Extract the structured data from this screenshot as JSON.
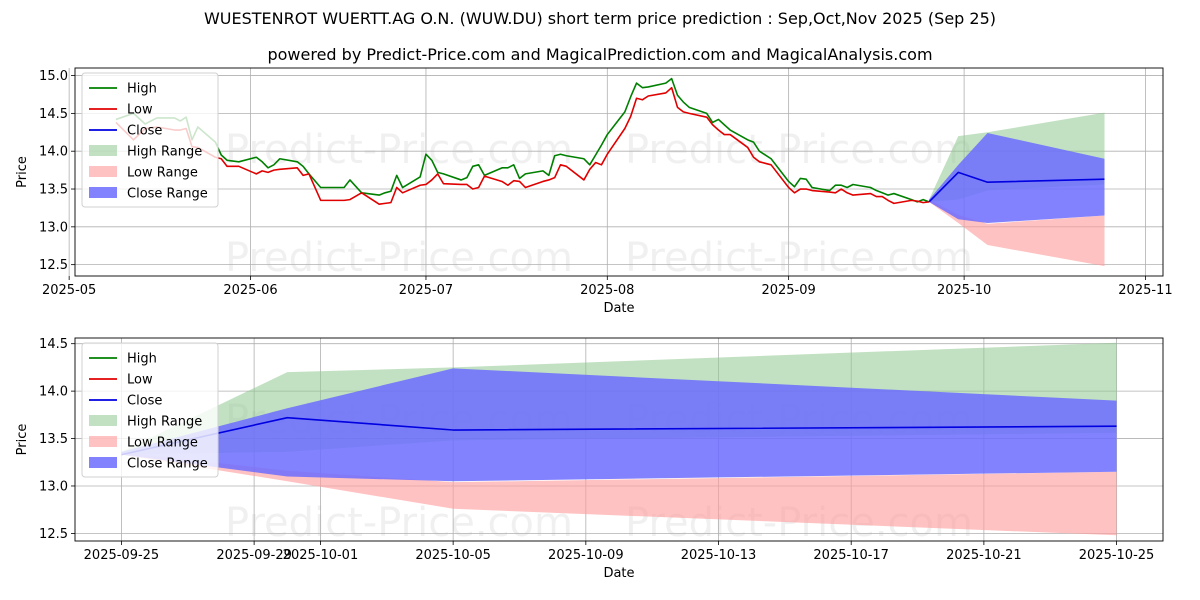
{
  "title": "WUESTENROT WUERTT.AG O.N. (WUW.DU) short term price prediction : Sep,Oct,Nov 2025 (Sep 25)",
  "subtitle": "powered by Predict-Price.com and MagicalPrediction.com and MagicalAnalysis.com",
  "watermark": "Predict-Price.com",
  "colors": {
    "high": "#008000",
    "low": "#e00000",
    "close": "#0000e0",
    "high_range": "#8fc98f",
    "low_range": "#ff9c9c",
    "close_range": "#6c6cff"
  },
  "chart_data": [
    {
      "type": "line",
      "xlabel": "Date",
      "ylabel": "Price",
      "xlim": [
        "2025-05-02",
        "2025-11-04"
      ],
      "ylim": [
        12.35,
        15.1
      ],
      "xticks": [
        "2025-05",
        "2025-06",
        "2025-07",
        "2025-08",
        "2025-09",
        "2025-10",
        "2025-11"
      ],
      "yticks": [
        12.5,
        13.0,
        13.5,
        14.0,
        14.5,
        15.0
      ],
      "legend": [
        "High",
        "Low",
        "Close",
        "High Range",
        "Low Range",
        "Close Range"
      ],
      "legend_position": "top-left",
      "grid": true,
      "series": [
        {
          "name": "High",
          "x": [
            "2025-05-09",
            "2025-05-12",
            "2025-05-14",
            "2025-05-16",
            "2025-05-19",
            "2025-05-20",
            "2025-05-21",
            "2025-05-22",
            "2025-05-23",
            "2025-05-26",
            "2025-05-27",
            "2025-05-28",
            "2025-05-30",
            "2025-06-02",
            "2025-06-03",
            "2025-06-04",
            "2025-06-05",
            "2025-06-06",
            "2025-06-09",
            "2025-06-10",
            "2025-06-11",
            "2025-06-13",
            "2025-06-16",
            "2025-06-17",
            "2025-06-18",
            "2025-06-20",
            "2025-06-23",
            "2025-06-24",
            "2025-06-25",
            "2025-06-26",
            "2025-06-27",
            "2025-06-30",
            "2025-07-01",
            "2025-07-02",
            "2025-07-03",
            "2025-07-04",
            "2025-07-07",
            "2025-07-08",
            "2025-07-09",
            "2025-07-10",
            "2025-07-11",
            "2025-07-14",
            "2025-07-15",
            "2025-07-16",
            "2025-07-17",
            "2025-07-18",
            "2025-07-21",
            "2025-07-22",
            "2025-07-23",
            "2025-07-24",
            "2025-07-25",
            "2025-07-28",
            "2025-07-29",
            "2025-07-30",
            "2025-07-31",
            "2025-08-01",
            "2025-08-04",
            "2025-08-05",
            "2025-08-06",
            "2025-08-07",
            "2025-08-08",
            "2025-08-11",
            "2025-08-12",
            "2025-08-13",
            "2025-08-14",
            "2025-08-15",
            "2025-08-18",
            "2025-08-19",
            "2025-08-20",
            "2025-08-21",
            "2025-08-22",
            "2025-08-25",
            "2025-08-26",
            "2025-08-27",
            "2025-08-28",
            "2025-08-29",
            "2025-09-01",
            "2025-09-02",
            "2025-09-03",
            "2025-09-04",
            "2025-09-05",
            "2025-09-08",
            "2025-09-09",
            "2025-09-10",
            "2025-09-11",
            "2025-09-12",
            "2025-09-15",
            "2025-09-16",
            "2025-09-17",
            "2025-09-18",
            "2025-09-19",
            "2025-09-22",
            "2025-09-23",
            "2025-09-24",
            "2025-09-25"
          ],
          "values": [
            14.42,
            14.5,
            14.36,
            14.44,
            14.44,
            14.4,
            14.45,
            14.15,
            14.32,
            14.12,
            13.95,
            13.88,
            13.86,
            13.92,
            13.86,
            13.78,
            13.82,
            13.9,
            13.86,
            13.8,
            13.7,
            13.52,
            13.52,
            13.52,
            13.62,
            13.45,
            13.42,
            13.45,
            13.47,
            13.68,
            13.52,
            13.66,
            13.96,
            13.88,
            13.72,
            13.7,
            13.62,
            13.65,
            13.8,
            13.82,
            13.68,
            13.78,
            13.78,
            13.82,
            13.64,
            13.7,
            13.74,
            13.68,
            13.94,
            13.96,
            13.94,
            13.9,
            13.82,
            13.95,
            14.08,
            14.22,
            14.52,
            14.72,
            14.9,
            14.84,
            14.85,
            14.9,
            14.96,
            14.74,
            14.65,
            14.58,
            14.5,
            14.38,
            14.42,
            14.35,
            14.28,
            14.15,
            14.12,
            14.0,
            13.95,
            13.9,
            13.6,
            13.53,
            13.64,
            13.63,
            13.52,
            13.48,
            13.55,
            13.55,
            13.52,
            13.56,
            13.52,
            13.48,
            13.45,
            13.42,
            13.44,
            13.36,
            13.33,
            13.36,
            13.33
          ]
        },
        {
          "name": "Low",
          "x": [
            "2025-05-09",
            "2025-05-12",
            "2025-05-14",
            "2025-05-16",
            "2025-05-19",
            "2025-05-20",
            "2025-05-21",
            "2025-05-22",
            "2025-05-23",
            "2025-05-26",
            "2025-05-27",
            "2025-05-28",
            "2025-05-30",
            "2025-06-02",
            "2025-06-03",
            "2025-06-04",
            "2025-06-05",
            "2025-06-06",
            "2025-06-09",
            "2025-06-10",
            "2025-06-11",
            "2025-06-13",
            "2025-06-16",
            "2025-06-17",
            "2025-06-18",
            "2025-06-20",
            "2025-06-23",
            "2025-06-24",
            "2025-06-25",
            "2025-06-26",
            "2025-06-27",
            "2025-06-30",
            "2025-07-01",
            "2025-07-02",
            "2025-07-03",
            "2025-07-04",
            "2025-07-07",
            "2025-07-08",
            "2025-07-09",
            "2025-07-10",
            "2025-07-11",
            "2025-07-14",
            "2025-07-15",
            "2025-07-16",
            "2025-07-17",
            "2025-07-18",
            "2025-07-21",
            "2025-07-22",
            "2025-07-23",
            "2025-07-24",
            "2025-07-25",
            "2025-07-28",
            "2025-07-29",
            "2025-07-30",
            "2025-07-31",
            "2025-08-01",
            "2025-08-04",
            "2025-08-05",
            "2025-08-06",
            "2025-08-07",
            "2025-08-08",
            "2025-08-11",
            "2025-08-12",
            "2025-08-13",
            "2025-08-14",
            "2025-08-15",
            "2025-08-18",
            "2025-08-19",
            "2025-08-20",
            "2025-08-21",
            "2025-08-22",
            "2025-08-25",
            "2025-08-26",
            "2025-08-27",
            "2025-08-28",
            "2025-08-29",
            "2025-09-01",
            "2025-09-02",
            "2025-09-03",
            "2025-09-04",
            "2025-09-05",
            "2025-09-08",
            "2025-09-09",
            "2025-09-10",
            "2025-09-11",
            "2025-09-12",
            "2025-09-15",
            "2025-09-16",
            "2025-09-17",
            "2025-09-18",
            "2025-09-19",
            "2025-09-22",
            "2025-09-23",
            "2025-09-24",
            "2025-09-25"
          ],
          "values": [
            14.38,
            14.15,
            14.3,
            14.32,
            14.28,
            14.28,
            14.3,
            14.06,
            14.05,
            13.92,
            13.9,
            13.8,
            13.8,
            13.7,
            13.74,
            13.72,
            13.75,
            13.76,
            13.78,
            13.68,
            13.7,
            13.35,
            13.35,
            13.35,
            13.36,
            13.45,
            13.3,
            13.31,
            13.32,
            13.52,
            13.45,
            13.55,
            13.56,
            13.62,
            13.7,
            13.57,
            13.56,
            13.56,
            13.5,
            13.52,
            13.67,
            13.6,
            13.55,
            13.61,
            13.6,
            13.52,
            13.6,
            13.62,
            13.65,
            13.82,
            13.8,
            13.62,
            13.76,
            13.85,
            13.82,
            13.96,
            14.3,
            14.46,
            14.7,
            14.68,
            14.73,
            14.77,
            14.84,
            14.58,
            14.52,
            14.5,
            14.45,
            14.35,
            14.28,
            14.22,
            14.22,
            14.05,
            13.92,
            13.86,
            13.84,
            13.82,
            13.52,
            13.45,
            13.5,
            13.5,
            13.48,
            13.46,
            13.45,
            13.5,
            13.45,
            13.42,
            13.44,
            13.4,
            13.4,
            13.35,
            13.31,
            13.35,
            13.34,
            13.32,
            13.33
          ]
        },
        {
          "name": "High Range",
          "x": [
            "2025-09-25",
            "2025-09-30",
            "2025-10-05",
            "2025-10-25"
          ],
          "upper": [
            13.36,
            14.2,
            14.25,
            14.51
          ],
          "lower": [
            13.33,
            13.36,
            13.48,
            13.56
          ]
        },
        {
          "name": "Low Range",
          "x": [
            "2025-09-25",
            "2025-09-30",
            "2025-10-05",
            "2025-10-25"
          ],
          "upper": [
            13.36,
            13.16,
            13.04,
            13.15
          ],
          "lower": [
            13.33,
            13.05,
            12.76,
            12.48
          ]
        },
        {
          "name": "Close Range",
          "x": [
            "2025-09-25",
            "2025-09-30",
            "2025-10-05",
            "2025-10-25"
          ],
          "upper": [
            13.36,
            13.82,
            14.24,
            13.9
          ],
          "lower": [
            13.33,
            13.1,
            13.05,
            13.15
          ]
        },
        {
          "name": "Close",
          "x": [
            "2025-09-25",
            "2025-09-30",
            "2025-10-05",
            "2025-10-25"
          ],
          "values": [
            13.33,
            13.72,
            13.59,
            13.63
          ]
        }
      ]
    },
    {
      "type": "line",
      "xlabel": "Date",
      "ylabel": "Price",
      "xlim": [
        "2025-09-23.6",
        "2025-10-26.4"
      ],
      "ylim": [
        12.42,
        14.56
      ],
      "xticks": [
        "2025-09-25",
        "2025-09-29",
        "2025-10-01",
        "2025-10-05",
        "2025-10-09",
        "2025-10-13",
        "2025-10-17",
        "2025-10-21",
        "2025-10-25"
      ],
      "yticks": [
        12.5,
        13.0,
        13.5,
        14.0,
        14.5
      ],
      "legend": [
        "High",
        "Low",
        "Close",
        "High Range",
        "Low Range",
        "Close Range"
      ],
      "legend_position": "top-left",
      "grid": true,
      "series": [
        {
          "name": "High Range",
          "x": [
            "2025-09-25",
            "2025-09-30",
            "2025-10-05",
            "2025-10-25"
          ],
          "upper": [
            13.36,
            14.2,
            14.25,
            14.51
          ],
          "lower": [
            13.33,
            13.36,
            13.48,
            13.56
          ]
        },
        {
          "name": "Low Range",
          "x": [
            "2025-09-25",
            "2025-09-30",
            "2025-10-05",
            "2025-10-25"
          ],
          "upper": [
            13.36,
            13.16,
            13.04,
            13.15
          ],
          "lower": [
            13.33,
            13.05,
            12.76,
            12.48
          ]
        },
        {
          "name": "Close Range",
          "x": [
            "2025-09-25",
            "2025-09-30",
            "2025-10-05",
            "2025-10-25"
          ],
          "upper": [
            13.36,
            13.82,
            14.24,
            13.9
          ],
          "lower": [
            13.33,
            13.1,
            13.05,
            13.15
          ]
        },
        {
          "name": "Close",
          "x": [
            "2025-09-25",
            "2025-09-30",
            "2025-10-05",
            "2025-10-25"
          ],
          "values": [
            13.33,
            13.72,
            13.59,
            13.63
          ]
        }
      ]
    }
  ]
}
